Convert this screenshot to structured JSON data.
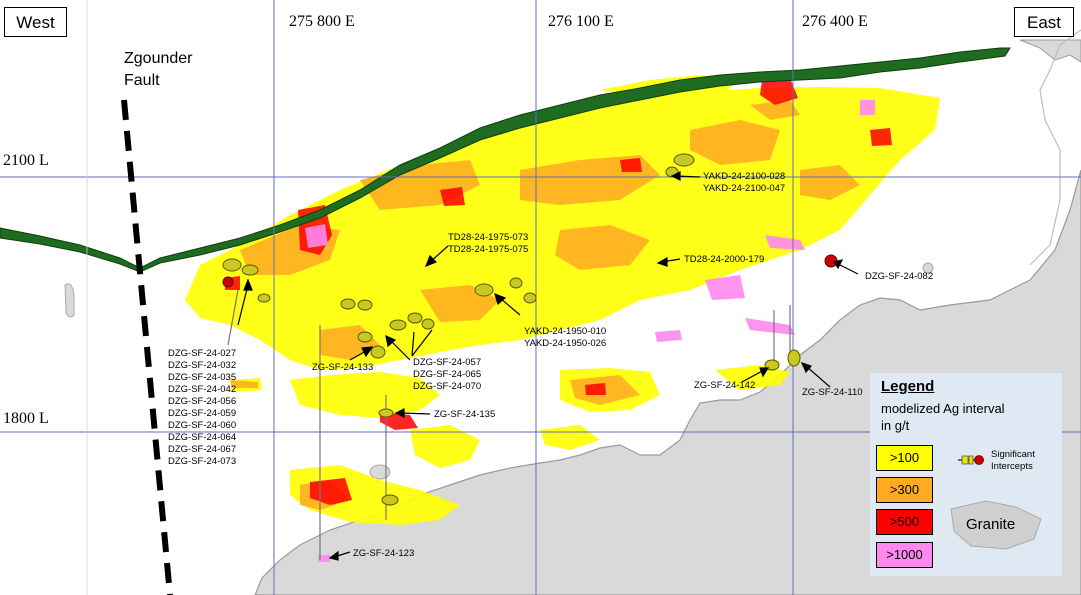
{
  "direction_labels": {
    "west": "West",
    "east": "East"
  },
  "eastings": [
    "275 800 E",
    "276 100 E",
    "276 400 E"
  ],
  "levels": [
    "2100 L",
    "1800 L"
  ],
  "fault": {
    "line1": "Zgounder",
    "line2": "Fault"
  },
  "holes": {
    "dzg_group_a": [
      "DZG-SF-24-027",
      "DZG-SF-24-032",
      "DZG-SF-24-035",
      "DZG-SF-24-042",
      "DZG-SF-24-056",
      "DZG-SF-24-059",
      "DZG-SF-24-060",
      "DZG-SF-24-064",
      "DZG-SF-24-067",
      "DZG-SF-24-073"
    ],
    "dzg_group_b": [
      "DZG-SF-24-057",
      "DZG-SF-24-065",
      "DZG-SF-24-070"
    ],
    "td28_1975": [
      "TD28-24-1975-073",
      "TD28-24-1975-075"
    ],
    "yakd_2100": [
      "YAKD-24-2100-028",
      "YAKD-24-2100-047"
    ],
    "yakd_1950": [
      "YAKD-24-1950-010",
      "YAKD-24-1950-026"
    ],
    "td28_2000": "TD28-24-2000-179",
    "dzg_082": "DZG-SF-24-082",
    "zg_133": "ZG-SF-24-133",
    "zg_135": "ZG-SF-24-135",
    "zg_142": "ZG-SF-24-142",
    "zg_110": "ZG-SF-24-110",
    "zg_123": "ZG-SF-24-123"
  },
  "legend": {
    "title": "Legend",
    "subtitle_line1": "modelized Ag interval",
    "subtitle_line2": "in g/t",
    "grades": [
      {
        "label": ">100",
        "color": "#ffff00"
      },
      {
        "label": ">300",
        "color": "#ffaa22"
      },
      {
        "label": ">500",
        "color": "#ff0000"
      },
      {
        "label": ">1000",
        "color": "#ff88ee"
      }
    ],
    "significant_line1": "Significant",
    "significant_line2": "Intercepts",
    "granite": "Granite"
  },
  "colors": {
    "grid": "#5f6fc0",
    "granite": "#d9d9d9",
    "surface_band": "#1f6b1f",
    "grade_100": "#ffff00",
    "grade_300": "#ffaa22",
    "grade_500": "#ff0000",
    "grade_1000": "#ff88ee"
  }
}
